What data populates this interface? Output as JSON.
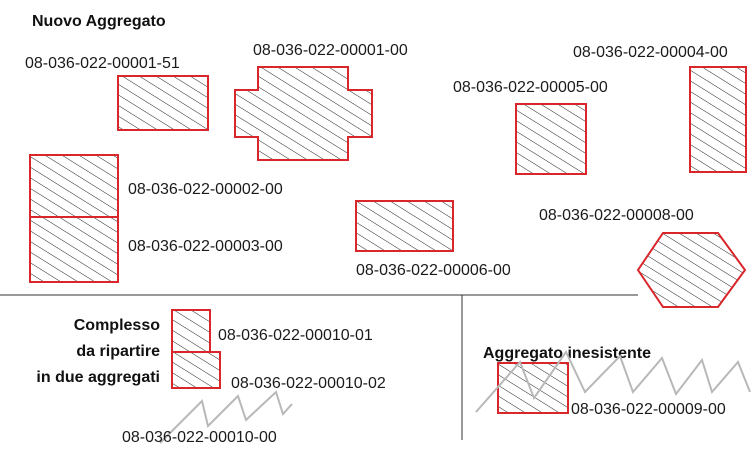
{
  "headings": {
    "new_aggregate": "Nuovo Aggregato",
    "complex_line1": "Complesso",
    "complex_line2": "da ripartire",
    "complex_line3": "in due aggregati",
    "nonexistent": "Aggregato inesistente"
  },
  "labels": {
    "p00001_51": "08-036-022-00001-51",
    "p00001_00": "08-036-022-00001-00",
    "p00004_00": "08-036-022-00004-00",
    "p00005_00": "08-036-022-00005-00",
    "p00002_00": "08-036-022-00002-00",
    "p00003_00": "08-036-022-00003-00",
    "p00006_00": "08-036-022-00006-00",
    "p00008_00": "08-036-022-00008-00",
    "p00010_01": "08-036-022-00010-01",
    "p00010_02": "08-036-022-00010-02",
    "p00010_00": "08-036-022-00010-00",
    "p00009_00": "08-036-022-00009-00"
  },
  "colors": {
    "parcel_border": "#d8262b",
    "hatch": "#222222",
    "strike_zigzag": "#b8b8b8",
    "text": "#1a1a1a"
  }
}
